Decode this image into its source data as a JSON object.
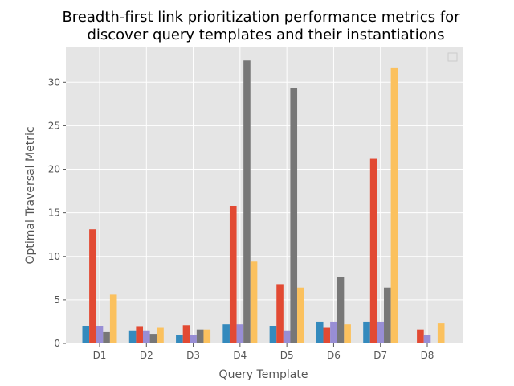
{
  "chart_data": {
    "type": "bar",
    "title_lines": [
      "Breadth-first link prioritization performance metrics for",
      "discover query templates and their instantiations"
    ],
    "xlabel": "Query Template",
    "ylabel": "Optimal Traversal Metric",
    "categories": [
      "D1",
      "D2",
      "D3",
      "D4",
      "D5",
      "D6",
      "D7",
      "D8"
    ],
    "ylim": [
      0,
      34
    ],
    "yticks": [
      0,
      5,
      10,
      15,
      20,
      25,
      30
    ],
    "grid": true,
    "legend": "top-right (empty)",
    "series": [
      {
        "color": "#348ABD",
        "values": [
          2.0,
          1.5,
          1.0,
          2.2,
          2.0,
          2.5,
          2.5,
          0
        ]
      },
      {
        "color": "#E24A33",
        "values": [
          13.1,
          1.9,
          2.1,
          15.8,
          6.8,
          1.8,
          21.2,
          1.6
        ]
      },
      {
        "color": "#988ED5",
        "values": [
          2.0,
          1.5,
          1.0,
          2.2,
          1.5,
          2.5,
          2.5,
          1.0
        ]
      },
      {
        "color": "#777777",
        "values": [
          1.3,
          1.1,
          1.6,
          32.5,
          29.3,
          7.6,
          6.4,
          0
        ]
      },
      {
        "color": "#FBC15E",
        "values": [
          5.6,
          1.8,
          1.6,
          9.4,
          6.4,
          2.2,
          31.7,
          2.3
        ]
      }
    ]
  }
}
